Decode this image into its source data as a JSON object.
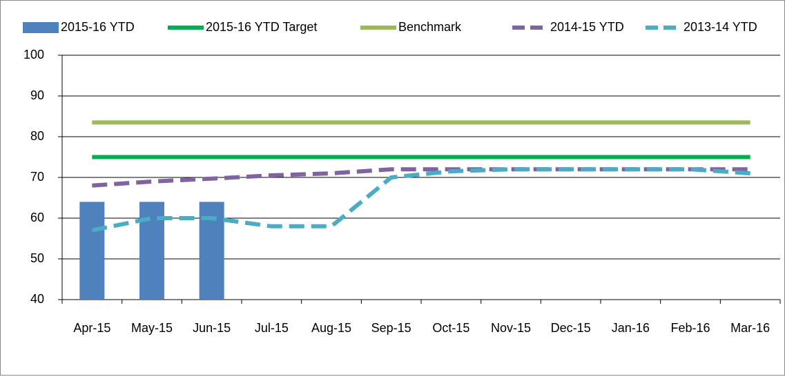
{
  "chart_data": {
    "type": "combo",
    "categories": [
      "Apr-15",
      "May-15",
      "Jun-15",
      "Jul-15",
      "Aug-15",
      "Sep-15",
      "Oct-15",
      "Nov-15",
      "Dec-15",
      "Jan-16",
      "Feb-16",
      "Mar-16"
    ],
    "series": [
      {
        "name": "2015-16 YTD",
        "kind": "bar",
        "color": "#4f81bd",
        "values": [
          64,
          64,
          64,
          null,
          null,
          null,
          null,
          null,
          null,
          null,
          null,
          null
        ]
      },
      {
        "name": "2015-16 YTD Target",
        "kind": "line",
        "color": "#00b050",
        "dashed": false,
        "values": [
          75,
          75,
          75,
          75,
          75,
          75,
          75,
          75,
          75,
          75,
          75,
          75
        ]
      },
      {
        "name": "Benchmark",
        "kind": "line",
        "color": "#9bbb59",
        "dashed": false,
        "values": [
          83.5,
          83.5,
          83.5,
          83.5,
          83.5,
          83.5,
          83.5,
          83.5,
          83.5,
          83.5,
          83.5,
          83.5
        ]
      },
      {
        "name": "2014-15 YTD",
        "kind": "line",
        "color": "#8064a2",
        "dashed": true,
        "values": [
          68,
          69,
          69.7,
          70.5,
          71,
          72,
          72,
          72,
          72,
          72,
          72,
          72
        ]
      },
      {
        "name": "2013-14 YTD",
        "kind": "line",
        "color": "#4bacc6",
        "dashed": true,
        "values": [
          57,
          60,
          60,
          58,
          58,
          70,
          71.5,
          72,
          72,
          72,
          72,
          71
        ]
      }
    ],
    "ylim": [
      40,
      100
    ],
    "yticks": [
      40,
      50,
      60,
      70,
      80,
      90,
      100
    ],
    "grid": true,
    "legend": "top"
  }
}
